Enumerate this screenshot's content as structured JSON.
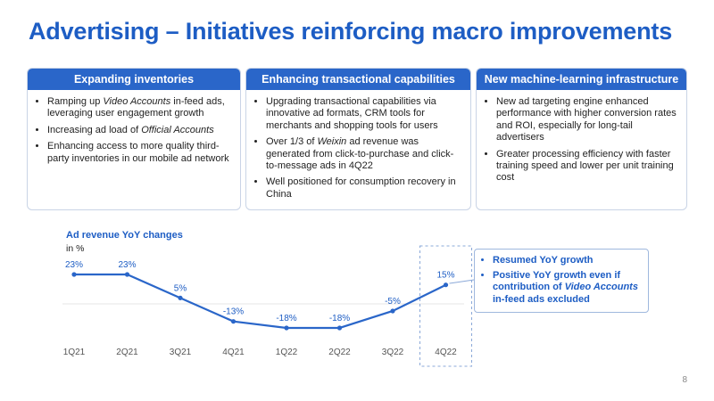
{
  "title": "Advertising – Initiatives reinforcing macro improvements",
  "panels": [
    {
      "heading": "Expanding inventories",
      "bullets": [
        [
          {
            "t": "Ramping up "
          },
          {
            "t": "Video Accounts",
            "i": true
          },
          {
            "t": " in-feed ads, leveraging user engagement growth"
          }
        ],
        [
          {
            "t": "Increasing ad load of "
          },
          {
            "t": "Official Accounts",
            "i": true
          }
        ],
        [
          {
            "t": "Enhancing access to more quality third-party inventories in our mobile ad network"
          }
        ]
      ]
    },
    {
      "heading": "Enhancing transactional capabilities",
      "bullets": [
        [
          {
            "t": "Upgrading transactional capabilities via innovative ad formats, CRM tools for merchants and shopping tools for users"
          }
        ],
        [
          {
            "t": "Over 1/3 of "
          },
          {
            "t": "Weixin",
            "i": true
          },
          {
            "t": " ad revenue was generated from click-to-purchase and click-to-message ads in 4Q22"
          }
        ],
        [
          {
            "t": "Well positioned for consumption recovery in China"
          }
        ]
      ]
    },
    {
      "heading": "New machine-learning infrastructure",
      "bullets": [
        [
          {
            "t": "New ad targeting engine enhanced performance with higher conversion rates and ROI, especially for long-tail advertisers"
          }
        ],
        [
          {
            "t": "Greater processing efficiency with faster training speed and lower per unit training cost"
          }
        ]
      ]
    }
  ],
  "chart_data": {
    "type": "line",
    "title": "Ad revenue YoY changes",
    "unit": "in %",
    "categories": [
      "1Q21",
      "2Q21",
      "3Q21",
      "4Q21",
      "1Q22",
      "2Q22",
      "3Q22",
      "4Q22"
    ],
    "values": [
      23,
      23,
      5,
      -13,
      -18,
      -18,
      -5,
      15
    ],
    "value_labels": [
      "23%",
      "23%",
      "5%",
      "-13%",
      "-18%",
      "-18%",
      "-5%",
      "15%"
    ],
    "highlight_category": "4Q22",
    "line_color": "#2a66c9"
  },
  "callout": {
    "bullets": [
      [
        {
          "t": "Resumed YoY growth"
        }
      ],
      [
        {
          "t": "Positive YoY growth even if contribution of "
        },
        {
          "t": "Video Accounts",
          "i": true
        },
        {
          "t": " in-feed ads excluded"
        }
      ]
    ]
  },
  "page_number": "8"
}
